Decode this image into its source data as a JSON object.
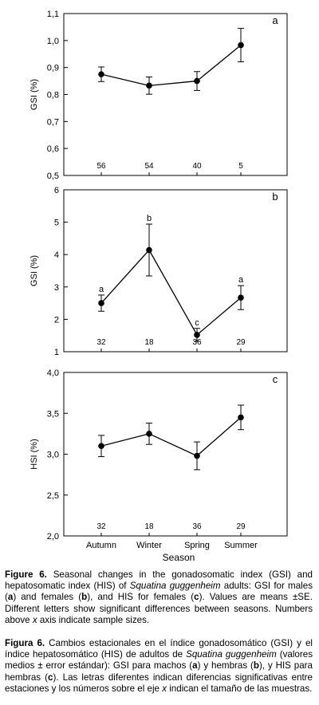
{
  "chart_data": [
    {
      "type": "line",
      "panel_letter": "a",
      "ylabel": "GSI (%)",
      "xlabel": "",
      "ylim": [
        0.5,
        1.1
      ],
      "yticks": [
        "0,5",
        "0,6",
        "0,7",
        "0,8",
        "0,9",
        "1,0",
        "1,1"
      ],
      "categories": [
        "Autumn",
        "Winter",
        "Spring",
        "Summer"
      ],
      "values": [
        0.875,
        0.833,
        0.85,
        0.983
      ],
      "errors": [
        0.027,
        0.032,
        0.035,
        0.062
      ],
      "sample_sizes": [
        "56",
        "54",
        "40",
        "5"
      ],
      "letters": [
        "",
        "",
        "",
        ""
      ]
    },
    {
      "type": "line",
      "panel_letter": "b",
      "ylabel": "GSI (%)",
      "xlabel": "",
      "ylim": [
        1,
        6
      ],
      "yticks": [
        "1",
        "2",
        "3",
        "4",
        "5",
        "6"
      ],
      "categories": [
        "Autumn",
        "Winter",
        "Spring",
        "Summer"
      ],
      "values": [
        2.5,
        4.14,
        1.52,
        2.67
      ],
      "errors": [
        0.25,
        0.8,
        0.2,
        0.37
      ],
      "sample_sizes": [
        "32",
        "18",
        "36",
        "29"
      ],
      "letters": [
        "a",
        "b",
        "c",
        "a"
      ]
    },
    {
      "type": "line",
      "panel_letter": "c",
      "ylabel": "HSI (%)",
      "xlabel": "Season",
      "ylim": [
        2.0,
        4.0
      ],
      "yticks": [
        "2,0",
        "2,5",
        "3,0",
        "3,5",
        "4,0"
      ],
      "categories": [
        "Autumn",
        "Winter",
        "Spring",
        "Summer"
      ],
      "values": [
        3.1,
        3.25,
        2.98,
        3.45
      ],
      "errors": [
        0.13,
        0.13,
        0.17,
        0.15
      ],
      "sample_sizes": [
        "32",
        "18",
        "36",
        "29"
      ],
      "letters": [
        "",
        "",
        "",
        ""
      ]
    }
  ],
  "caption_en": {
    "label": "Figure 6.",
    "t1": " Seasonal changes in the gonadosomatic index (GSI) and hepatosomatic index (HIS) of ",
    "species": "Squatina guggenheim",
    "t2": " adults: GSI for males (",
    "a": "a",
    "t3": ") and females (",
    "b": "b",
    "t4": "), and HIS for females (",
    "c": "c",
    "t5": "). Values are means ±SE. Different letters show significant differences between seasons. Numbers above ",
    "x": "x",
    "t6": " axis indicate sample sizes."
  },
  "caption_es": {
    "label": "Figura 6.",
    "t1": " Cambios estacionales en el índice gonadosomático (GSI) y el índice hepatosomático (HIS) de adultos de ",
    "species": "Squatina guggenheim",
    "t2": " (valores medios ± error estándar): GSI para machos (",
    "a": "a",
    "t3": ") y hembras (",
    "b": "b",
    "t4": "), y HIS para hembras (",
    "c": "c",
    "t5": "). Las letras diferentes indican diferencias significativas entre estaciones y los números sobre el eje ",
    "x": "x",
    "t6": " indican el tamaño de las muestras."
  }
}
